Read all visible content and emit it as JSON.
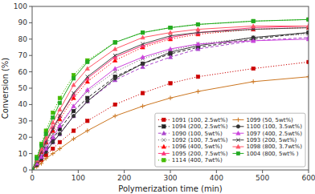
{
  "chart_data": {
    "type": "line",
    "x_label": "Polymerization time (min)",
    "y_label": "Conversion (%)",
    "xlim": [
      0,
      600
    ],
    "ylim": [
      0,
      100
    ],
    "xticks": [
      0,
      100,
      200,
      300,
      400,
      500,
      600
    ],
    "yticks": [
      0,
      10,
      20,
      30,
      40,
      50,
      60,
      70,
      80,
      90,
      100
    ],
    "legend": "lower right",
    "x": [
      0,
      10,
      20,
      30,
      45,
      60,
      90,
      120,
      180,
      240,
      300,
      360,
      480,
      600
    ],
    "series": [
      {
        "name": "1091 (100, 2.5wt%)",
        "color": "#cc0000",
        "line_style": "dotted",
        "marker": "square",
        "values": [
          0,
          3,
          6,
          9,
          13,
          17,
          24,
          30,
          40,
          47,
          53,
          57,
          62,
          66
        ]
      },
      {
        "name": "1094 (200, 2.5wt%)",
        "color": "#222222",
        "line_style": "dashed",
        "marker": "square",
        "values": [
          0,
          4,
          8,
          13,
          19,
          25,
          36,
          44,
          57,
          65,
          71,
          75,
          80,
          84
        ]
      },
      {
        "name": "1090 (100, 5wt%)",
        "color": "#aa44cc",
        "line_style": "dashed",
        "marker": "triangle",
        "values": [
          0,
          4,
          8,
          12,
          17,
          22,
          33,
          42,
          55,
          63,
          69,
          74,
          79,
          81
        ]
      },
      {
        "name": "1092 (100, 7.5wt%)",
        "color": "#777777",
        "line_style": "dotted",
        "marker": "x",
        "values": [
          0,
          5,
          10,
          15,
          22,
          28,
          39,
          48,
          60,
          68,
          73,
          77,
          81,
          83
        ]
      },
      {
        "name": "1096 (400, 5wt%)",
        "color": "#ff0000",
        "line_style": "dotted",
        "marker": "triangle",
        "values": [
          0,
          5,
          11,
          17,
          24,
          31,
          44,
          54,
          67,
          75,
          80,
          83,
          86,
          87
        ]
      },
      {
        "name": "1095 (200, 7.5wt%)",
        "color": "#ff3377",
        "line_style": "solid",
        "marker": "triangle",
        "values": [
          0,
          6,
          12,
          18,
          26,
          33,
          46,
          56,
          69,
          76,
          81,
          84,
          87,
          88
        ]
      },
      {
        "name": "1114 (400, 7wt%)",
        "color": "#44bb00",
        "line_style": "dotted",
        "marker": "square",
        "values": [
          0,
          8,
          16,
          24,
          35,
          44,
          58,
          67,
          78,
          84,
          87,
          89,
          91,
          92
        ]
      },
      {
        "name": "1099 (50, 5wt%)",
        "color": "#cc7722",
        "line_style": "solid",
        "marker": "plus",
        "values": [
          0,
          2,
          4,
          7,
          10,
          13,
          19,
          24,
          33,
          39,
          44,
          48,
          54,
          57
        ]
      },
      {
        "name": "1100 (100, 3.5wt%)",
        "color": "#333333",
        "line_style": "solid",
        "marker": "circle",
        "values": [
          0,
          3,
          7,
          11,
          17,
          22,
          33,
          42,
          56,
          65,
          72,
          76,
          81,
          84
        ]
      },
      {
        "name": "1097 (400, 2.5wt%)",
        "color": "#cc44dd",
        "line_style": "solid",
        "marker": "triangle",
        "values": [
          0,
          4,
          8,
          13,
          20,
          27,
          39,
          49,
          62,
          69,
          74,
          77,
          79,
          80
        ]
      },
      {
        "name": "1093 (200, 5wt%)",
        "color": "#444444",
        "line_style": "solid",
        "marker": "x",
        "values": [
          0,
          5,
          11,
          17,
          25,
          33,
          47,
          57,
          70,
          77,
          82,
          84,
          86,
          87
        ]
      },
      {
        "name": "1098 (800, 3.7wt%)",
        "color": "#ff5566",
        "line_style": "solid",
        "marker": "triangle",
        "values": [
          0,
          6,
          13,
          20,
          29,
          37,
          52,
          62,
          74,
          81,
          84,
          86,
          88,
          88
        ]
      },
      {
        "name": "1004 (800, 5wt% )",
        "color": "#22aa22",
        "line_style": "solid",
        "marker": "square",
        "values": [
          0,
          7,
          15,
          22,
          32,
          41,
          56,
          66,
          78,
          84,
          87,
          89,
          91,
          92
        ]
      }
    ]
  }
}
